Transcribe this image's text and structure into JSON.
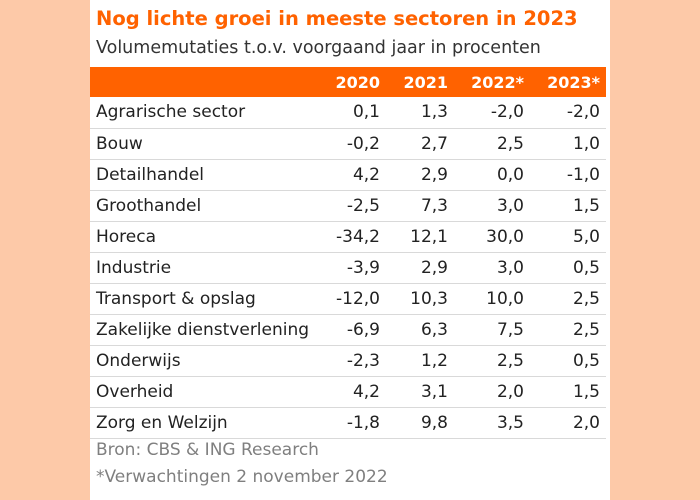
{
  "chart_data": {
    "type": "table",
    "title": "Nog lichte groei in meeste sectoren in 2023",
    "subtitle": "Volumemutaties t.o.v. voorgaand jaar in procenten",
    "columns": [
      "2020",
      "2021",
      "2022*",
      "2023*"
    ],
    "rows": [
      {
        "label": "Agrarische sector",
        "values": [
          "0,1",
          "1,3",
          "-2,0",
          "-2,0"
        ]
      },
      {
        "label": "Bouw",
        "values": [
          "-0,2",
          "2,7",
          "2,5",
          "1,0"
        ]
      },
      {
        "label": "Detailhandel",
        "values": [
          "4,2",
          "2,9",
          "0,0",
          "-1,0"
        ]
      },
      {
        "label": "Groothandel",
        "values": [
          "-2,5",
          "7,3",
          "3,0",
          "1,5"
        ]
      },
      {
        "label": "Horeca",
        "values": [
          "-34,2",
          "12,1",
          "30,0",
          "5,0"
        ]
      },
      {
        "label": "Industrie",
        "values": [
          "-3,9",
          "2,9",
          "3,0",
          "0,5"
        ]
      },
      {
        "label": "Transport & opslag",
        "values": [
          "-12,0",
          "10,3",
          "10,0",
          "2,5"
        ]
      },
      {
        "label": "Zakelijke dienstverlening",
        "values": [
          "-6,9",
          "6,3",
          "7,5",
          "2,5"
        ]
      },
      {
        "label": "Onderwijs",
        "values": [
          "-2,3",
          "1,2",
          "2,5",
          "0,5"
        ]
      },
      {
        "label": "Overheid",
        "values": [
          "4,2",
          "3,1",
          "2,0",
          "1,5"
        ]
      },
      {
        "label": "Zorg en Welzijn",
        "values": [
          "-1,8",
          "9,8",
          "3,5",
          "2,0"
        ]
      }
    ],
    "source": "Bron: CBS & ING Research",
    "footnote": "*Verwachtingen 2 november 2022"
  },
  "colors": {
    "page_background": "#fdc9a8",
    "accent": "#ff6200",
    "header_text": "#ffffff",
    "source_text": "#7f7f7f"
  }
}
